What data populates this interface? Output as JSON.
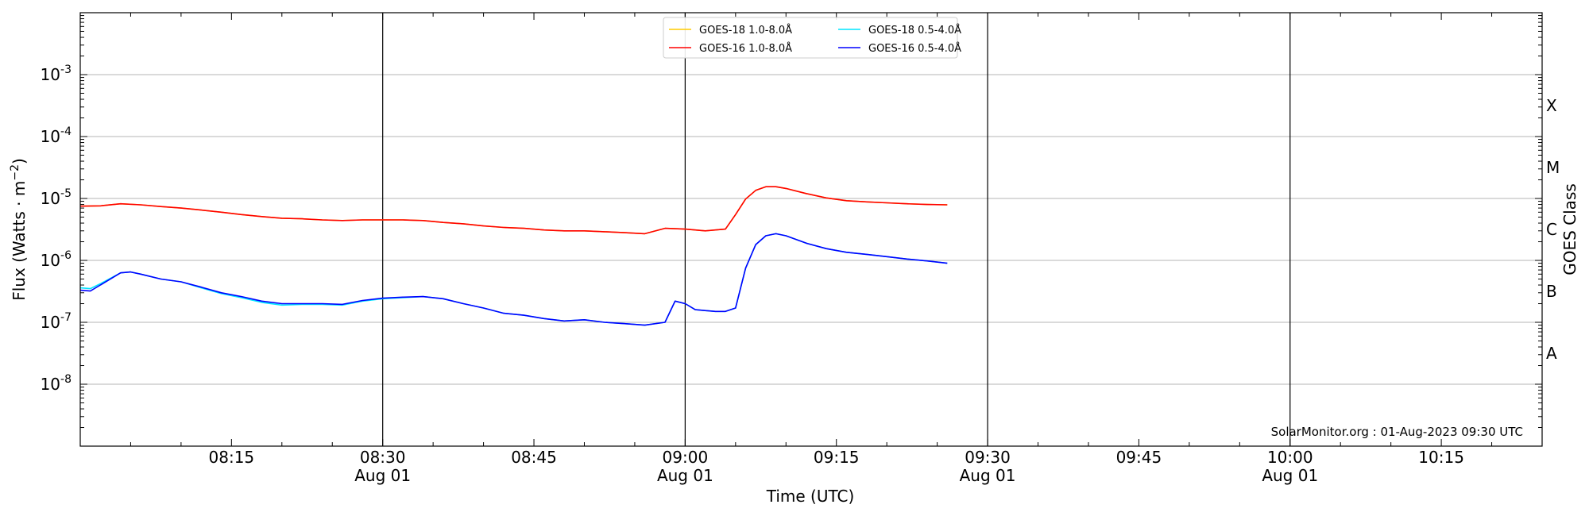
{
  "chart_data": {
    "type": "line",
    "title": "",
    "xlabel": "Time (UTC)",
    "ylabel": "Flux (Watts · m⁻²)",
    "y2label": "GOES Class",
    "yscale": "log",
    "ylim": [
      1e-09,
      0.01
    ],
    "xlim": [
      "08:00",
      "10:25"
    ],
    "date": "Aug 01",
    "x_ticks": [
      {
        "time": "08:15",
        "date": ""
      },
      {
        "time": "08:30",
        "date": "Aug 01"
      },
      {
        "time": "08:45",
        "date": ""
      },
      {
        "time": "09:00",
        "date": "Aug 01"
      },
      {
        "time": "09:15",
        "date": ""
      },
      {
        "time": "09:30",
        "date": "Aug 01"
      },
      {
        "time": "09:45",
        "date": ""
      },
      {
        "time": "10:00",
        "date": "Aug 01"
      },
      {
        "time": "10:15",
        "date": ""
      }
    ],
    "day_lines": [
      "08:30",
      "09:00",
      "09:30",
      "10:00"
    ],
    "y_ticks": [
      {
        "exp": "-3",
        "value": 0.001
      },
      {
        "exp": "-4",
        "value": 0.0001
      },
      {
        "exp": "-5",
        "value": 1e-05
      },
      {
        "exp": "-6",
        "value": 1e-06
      },
      {
        "exp": "-7",
        "value": 1e-07
      },
      {
        "exp": "-8",
        "value": 1e-08
      }
    ],
    "goes_classes": [
      {
        "label": "X",
        "value": 0.000316
      },
      {
        "label": "M",
        "value": 3.16e-05
      },
      {
        "label": "C",
        "value": 3.16e-06
      },
      {
        "label": "B",
        "value": 3.16e-07
      },
      {
        "label": "A",
        "value": 3.16e-08
      }
    ],
    "grid": true,
    "legend_position": "top-center",
    "credit": "SolarMonitor.org : 01-Aug-2023 09:30 UTC",
    "series": [
      {
        "name": "GOES-18 1.0-8.0Å",
        "color": "#ffcc00",
        "x": [
          "08:00",
          "08:02",
          "08:04",
          "08:06",
          "08:08",
          "08:10",
          "08:12",
          "08:14",
          "08:16",
          "08:18",
          "08:20",
          "08:22",
          "08:24",
          "08:26",
          "08:28",
          "08:30",
          "08:32",
          "08:34",
          "08:36",
          "08:38",
          "08:40",
          "08:42",
          "08:44",
          "08:46",
          "08:48",
          "08:50",
          "08:52",
          "08:54",
          "08:56",
          "08:58",
          "09:00",
          "09:02",
          "09:04",
          "09:05",
          "09:06",
          "09:07",
          "09:08",
          "09:09",
          "09:10",
          "09:12",
          "09:14",
          "09:16",
          "09:18",
          "09:20",
          "09:22",
          "09:24",
          "09:26"
        ],
        "values": [
          7.5e-06,
          7.6e-06,
          8.2e-06,
          7.9e-06,
          7.4e-06,
          7e-06,
          6.5e-06,
          6e-06,
          5.5e-06,
          5.1e-06,
          4.8e-06,
          4.7e-06,
          4.5e-06,
          4.4e-06,
          4.5e-06,
          4.5e-06,
          4.5e-06,
          4.4e-06,
          4.1e-06,
          3.9e-06,
          3.6e-06,
          3.4e-06,
          3.3e-06,
          3.1e-06,
          3e-06,
          3e-06,
          2.9e-06,
          2.8e-06,
          2.7e-06,
          3.3e-06,
          3.2e-06,
          3e-06,
          3.2e-06,
          5.5e-06,
          9.8e-06,
          1.35e-05,
          1.55e-05,
          1.55e-05,
          1.45e-05,
          1.2e-05,
          1.02e-05,
          9.2e-06,
          8.8e-06,
          8.5e-06,
          8.2e-06,
          8e-06,
          7.9e-06
        ]
      },
      {
        "name": "GOES-18 0.5-4.0Å",
        "color": "#00e5ff",
        "x": [
          "08:00",
          "08:01",
          "08:02",
          "08:04",
          "08:05",
          "08:06",
          "08:08",
          "08:10",
          "08:12",
          "08:14",
          "08:16",
          "08:18",
          "08:20",
          "08:22",
          "08:24",
          "08:26",
          "08:28",
          "08:30",
          "08:32",
          "08:34",
          "08:36",
          "08:38",
          "08:40",
          "08:42",
          "08:44",
          "08:46",
          "08:48",
          "08:50",
          "08:52",
          "08:54",
          "08:56",
          "08:58",
          "08:59",
          "09:00",
          "09:01",
          "09:03",
          "09:04",
          "09:05",
          "09:06",
          "09:07",
          "09:08",
          "09:09",
          "09:10",
          "09:12",
          "09:14",
          "09:16",
          "09:18",
          "09:20",
          "09:22",
          "09:24",
          "09:26"
        ],
        "values": [
          3.6e-07,
          3.5e-07,
          4.2e-07,
          6.3e-07,
          6.5e-07,
          6e-07,
          5e-07,
          4.5e-07,
          3.6e-07,
          2.9e-07,
          2.5e-07,
          2.1e-07,
          1.9e-07,
          1.95e-07,
          1.95e-07,
          1.9e-07,
          2.2e-07,
          2.4e-07,
          2.5e-07,
          2.6e-07,
          2.4e-07,
          2e-07,
          1.7e-07,
          1.4e-07,
          1.3e-07,
          1.15e-07,
          1.05e-07,
          1.1e-07,
          1e-07,
          9.5e-08,
          9e-08,
          1e-07,
          2.2e-07,
          2e-07,
          1.6e-07,
          1.5e-07,
          1.5e-07,
          1.7e-07,
          7.5e-07,
          1.8e-06,
          2.5e-06,
          2.7e-06,
          2.5e-06,
          1.9e-06,
          1.55e-06,
          1.35e-06,
          1.25e-06,
          1.15e-06,
          1.05e-06,
          9.8e-07,
          9e-07
        ]
      },
      {
        "name": "GOES-16 1.0-8.0Å",
        "color": "#ff0000",
        "x": [
          "08:00",
          "08:02",
          "08:04",
          "08:06",
          "08:08",
          "08:10",
          "08:12",
          "08:14",
          "08:16",
          "08:18",
          "08:20",
          "08:22",
          "08:24",
          "08:26",
          "08:28",
          "08:30",
          "08:32",
          "08:34",
          "08:36",
          "08:38",
          "08:40",
          "08:42",
          "08:44",
          "08:46",
          "08:48",
          "08:50",
          "08:52",
          "08:54",
          "08:56",
          "08:58",
          "09:00",
          "09:02",
          "09:04",
          "09:05",
          "09:06",
          "09:07",
          "09:08",
          "09:09",
          "09:10",
          "09:12",
          "09:14",
          "09:16",
          "09:18",
          "09:20",
          "09:22",
          "09:24",
          "09:26"
        ],
        "values": [
          7.5e-06,
          7.6e-06,
          8.2e-06,
          7.9e-06,
          7.4e-06,
          7e-06,
          6.5e-06,
          6e-06,
          5.5e-06,
          5.1e-06,
          4.8e-06,
          4.7e-06,
          4.5e-06,
          4.4e-06,
          4.5e-06,
          4.5e-06,
          4.5e-06,
          4.4e-06,
          4.1e-06,
          3.9e-06,
          3.6e-06,
          3.4e-06,
          3.3e-06,
          3.1e-06,
          3e-06,
          3e-06,
          2.9e-06,
          2.8e-06,
          2.7e-06,
          3.3e-06,
          3.2e-06,
          3e-06,
          3.2e-06,
          5.5e-06,
          9.8e-06,
          1.35e-05,
          1.55e-05,
          1.55e-05,
          1.45e-05,
          1.2e-05,
          1.02e-05,
          9.2e-06,
          8.8e-06,
          8.5e-06,
          8.2e-06,
          8e-06,
          7.9e-06
        ]
      },
      {
        "name": "GOES-16 0.5-4.0Å",
        "color": "#0000ff",
        "x": [
          "08:00",
          "08:01",
          "08:02",
          "08:04",
          "08:05",
          "08:06",
          "08:08",
          "08:10",
          "08:12",
          "08:14",
          "08:16",
          "08:18",
          "08:20",
          "08:22",
          "08:24",
          "08:26",
          "08:28",
          "08:30",
          "08:32",
          "08:34",
          "08:36",
          "08:38",
          "08:40",
          "08:42",
          "08:44",
          "08:46",
          "08:48",
          "08:50",
          "08:52",
          "08:54",
          "08:56",
          "08:58",
          "08:59",
          "09:00",
          "09:01",
          "09:03",
          "09:04",
          "09:05",
          "09:06",
          "09:07",
          "09:08",
          "09:09",
          "09:10",
          "09:12",
          "09:14",
          "09:16",
          "09:18",
          "09:20",
          "09:22",
          "09:24",
          "09:26"
        ],
        "values": [
          3.3e-07,
          3.2e-07,
          4e-07,
          6.3e-07,
          6.5e-07,
          6e-07,
          5e-07,
          4.5e-07,
          3.7e-07,
          3e-07,
          2.6e-07,
          2.2e-07,
          2e-07,
          2e-07,
          2e-07,
          1.95e-07,
          2.25e-07,
          2.45e-07,
          2.55e-07,
          2.6e-07,
          2.4e-07,
          2e-07,
          1.7e-07,
          1.4e-07,
          1.3e-07,
          1.15e-07,
          1.05e-07,
          1.1e-07,
          1e-07,
          9.5e-08,
          9e-08,
          1e-07,
          2.2e-07,
          2e-07,
          1.6e-07,
          1.5e-07,
          1.5e-07,
          1.7e-07,
          7.5e-07,
          1.8e-06,
          2.5e-06,
          2.7e-06,
          2.5e-06,
          1.9e-06,
          1.55e-06,
          1.35e-06,
          1.25e-06,
          1.15e-06,
          1.05e-06,
          9.8e-07,
          9e-07
        ]
      }
    ],
    "legend_order": [
      0,
      1,
      2,
      3
    ]
  }
}
